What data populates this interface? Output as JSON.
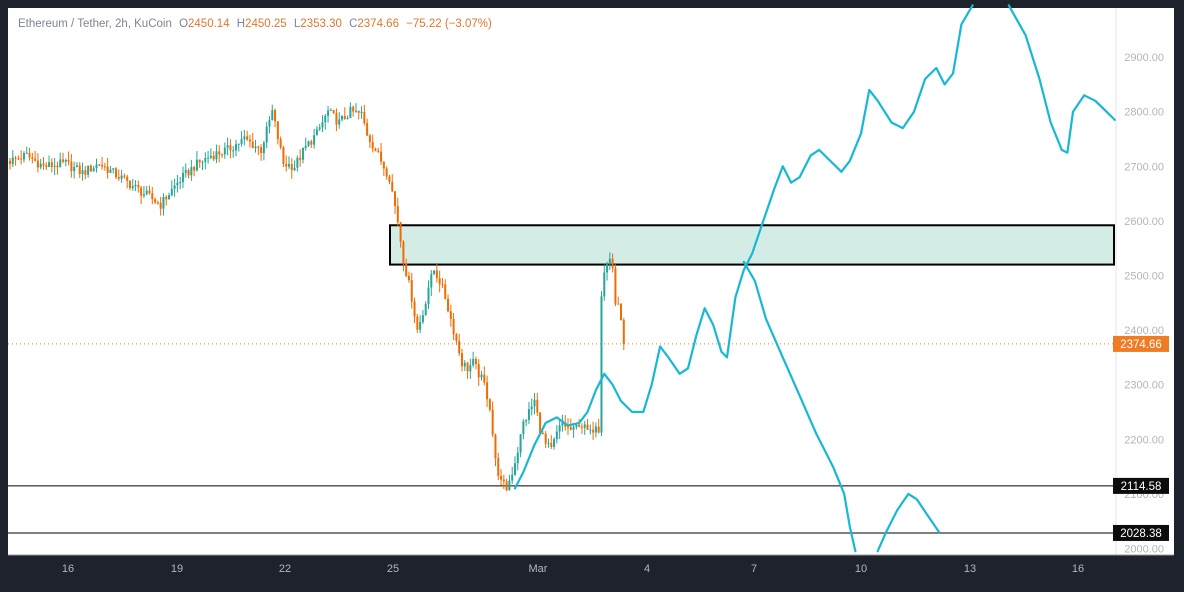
{
  "legend": {
    "symbol": "Ethereum / Tether, 2h, KuCoin",
    "open_label": "O",
    "open": "2450.14",
    "high_label": "H",
    "high": "2450.25",
    "low_label": "L",
    "low": "2353.30",
    "close_label": "C",
    "close": "2374.66",
    "change": "−75.22 (−3.07%)"
  },
  "colors": {
    "up": "#26a69a",
    "down": "#ef6c00",
    "projection": "#17b8d4",
    "zone_fill": "#d4ece6",
    "zone_border": "#000000",
    "price_tag": "#ef7b23",
    "level_tag": "#0c0c0c",
    "grid_text": "#b2b5be"
  },
  "chart_data": {
    "type": "candlestick",
    "symbol": "Ethereum / Tether",
    "interval": "2h",
    "exchange": "KuCoin",
    "x_ticks": [
      "16",
      "19",
      "22",
      "25",
      "Mar",
      "4",
      "7",
      "10",
      "13",
      "16"
    ],
    "y_ticks": [
      "2000.00",
      "2100.00",
      "2200.00",
      "2300.00",
      "2400.00",
      "2500.00",
      "2600.00",
      "2700.00",
      "2800.00",
      "2900.00"
    ],
    "ylim": [
      1988,
      2990
    ],
    "last_price": "2374.66",
    "levels": [
      "2114.58",
      "2028.38"
    ],
    "zone": {
      "low": 2520,
      "high": 2592
    },
    "price_path": [
      [
        0,
        2710
      ],
      [
        6,
        2720
      ],
      [
        12,
        2700
      ],
      [
        20,
        2705
      ],
      [
        26,
        2688
      ],
      [
        32,
        2705
      ],
      [
        40,
        2678
      ],
      [
        48,
        2650
      ],
      [
        54,
        2630
      ],
      [
        60,
        2670
      ],
      [
        66,
        2700
      ],
      [
        72,
        2720
      ],
      [
        78,
        2730
      ],
      [
        84,
        2750
      ],
      [
        90,
        2730
      ],
      [
        94,
        2800
      ],
      [
        98,
        2705
      ],
      [
        102,
        2700
      ],
      [
        106,
        2735
      ],
      [
        110,
        2760
      ],
      [
        114,
        2800
      ],
      [
        118,
        2780
      ],
      [
        122,
        2800
      ],
      [
        126,
        2795
      ],
      [
        128,
        2760
      ],
      [
        132,
        2720
      ],
      [
        136,
        2680
      ],
      [
        139,
        2600
      ],
      [
        141,
        2530
      ],
      [
        144,
        2460
      ],
      [
        146,
        2400
      ],
      [
        148,
        2430
      ],
      [
        150,
        2480
      ],
      [
        152,
        2510
      ],
      [
        154,
        2490
      ],
      [
        156,
        2460
      ],
      [
        158,
        2420
      ],
      [
        160,
        2380
      ],
      [
        162,
        2340
      ],
      [
        164,
        2330
      ],
      [
        166,
        2340
      ],
      [
        168,
        2320
      ],
      [
        170,
        2300
      ],
      [
        172,
        2260
      ],
      [
        174,
        2160
      ],
      [
        176,
        2120
      ],
      [
        178,
        2110
      ],
      [
        180,
        2140
      ],
      [
        182,
        2180
      ],
      [
        184,
        2230
      ],
      [
        186,
        2250
      ],
      [
        188,
        2270
      ],
      [
        190,
        2220
      ],
      [
        192,
        2190
      ],
      [
        194,
        2180
      ],
      [
        196,
        2210
      ],
      [
        198,
        2230
      ],
      [
        200,
        2220
      ],
      [
        202,
        2215
      ],
      [
        204,
        2230
      ],
      [
        206,
        2220
      ],
      [
        208,
        2210
      ],
      [
        210,
        2230
      ],
      [
        211,
        2220
      ],
      [
        212,
        2470
      ],
      [
        213,
        2510
      ],
      [
        214,
        2520
      ],
      [
        215,
        2530
      ],
      [
        216,
        2515
      ],
      [
        217,
        2450
      ],
      [
        218,
        2440
      ],
      [
        219,
        2425
      ],
      [
        220,
        2374.66
      ]
    ],
    "projection_1": [
      [
        181,
        2110
      ],
      [
        184,
        2140
      ],
      [
        188,
        2190
      ],
      [
        192,
        2230
      ],
      [
        196,
        2240
      ],
      [
        200,
        2225
      ],
      [
        204,
        2230
      ],
      [
        207,
        2250
      ],
      [
        210,
        2290
      ],
      [
        213,
        2320
      ],
      [
        216,
        2300
      ],
      [
        219,
        2270
      ],
      [
        223,
        2250
      ],
      [
        227,
        2250
      ],
      [
        230,
        2300
      ],
      [
        233,
        2370
      ],
      [
        236,
        2350
      ],
      [
        240,
        2320
      ],
      [
        243,
        2330
      ],
      [
        246,
        2390
      ],
      [
        249,
        2440
      ],
      [
        252,
        2410
      ],
      [
        255,
        2360
      ],
      [
        257,
        2350
      ],
      [
        260,
        2460
      ],
      [
        263,
        2510
      ],
      [
        266,
        2540
      ],
      [
        270,
        2600
      ],
      [
        274,
        2660
      ],
      [
        277,
        2700
      ],
      [
        280,
        2670
      ],
      [
        283,
        2680
      ],
      [
        287,
        2720
      ],
      [
        290,
        2730
      ],
      [
        294,
        2710
      ],
      [
        298,
        2690
      ],
      [
        301,
        2710
      ],
      [
        305,
        2760
      ],
      [
        308,
        2840
      ],
      [
        311,
        2820
      ],
      [
        316,
        2780
      ],
      [
        320,
        2770
      ],
      [
        324,
        2800
      ],
      [
        328,
        2860
      ],
      [
        332,
        2880
      ],
      [
        335,
        2850
      ],
      [
        338,
        2870
      ],
      [
        341,
        2960
      ],
      [
        345,
        2995
      ]
    ],
    "projection_2": [
      [
        358,
        2995
      ],
      [
        364,
        2940
      ],
      [
        369,
        2860
      ],
      [
        373,
        2780
      ],
      [
        377,
        2730
      ],
      [
        379,
        2725
      ],
      [
        381,
        2800
      ],
      [
        385,
        2830
      ],
      [
        389,
        2820
      ],
      [
        393,
        2800
      ],
      [
        396,
        2785
      ]
    ],
    "projection_3": [
      [
        263,
        2525
      ],
      [
        267,
        2490
      ],
      [
        271,
        2420
      ],
      [
        277,
        2350
      ],
      [
        283,
        2280
      ],
      [
        289,
        2210
      ],
      [
        295,
        2150
      ],
      [
        299,
        2100
      ],
      [
        301,
        2040
      ],
      [
        303,
        1995
      ]
    ],
    "projection_4": [
      [
        311,
        1995
      ],
      [
        314,
        2030
      ],
      [
        318,
        2070
      ],
      [
        322,
        2100
      ],
      [
        325,
        2090
      ],
      [
        329,
        2060
      ],
      [
        333,
        2030
      ]
    ]
  }
}
